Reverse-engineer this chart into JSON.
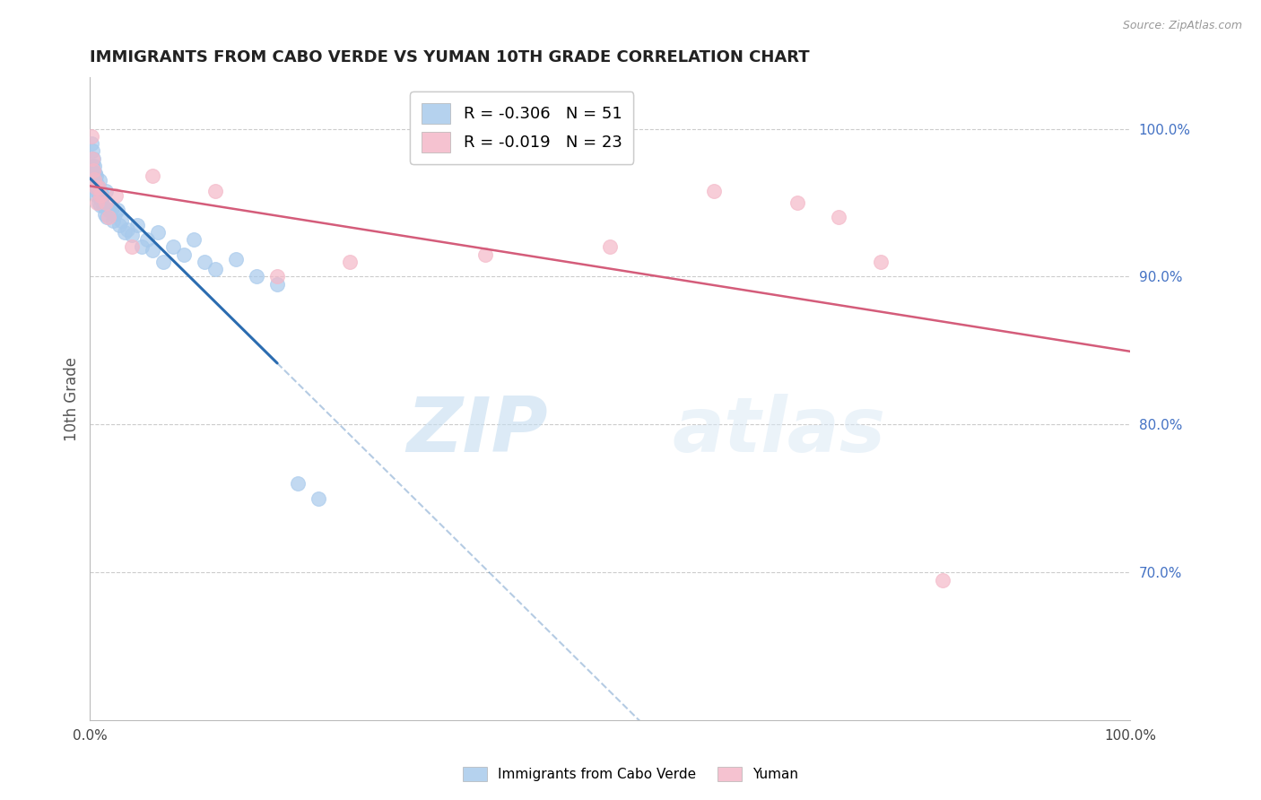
{
  "title": "IMMIGRANTS FROM CABO VERDE VS YUMAN 10TH GRADE CORRELATION CHART",
  "source": "Source: ZipAtlas.com",
  "ylabel": "10th Grade",
  "right_yticks": [
    "70.0%",
    "80.0%",
    "90.0%",
    "100.0%"
  ],
  "right_ytick_vals": [
    0.7,
    0.8,
    0.9,
    1.0
  ],
  "legend_blue_r": "R = -0.306",
  "legend_blue_n": "N = 51",
  "legend_pink_r": "R = -0.019",
  "legend_pink_n": "N = 23",
  "blue_color": "#a8caec",
  "pink_color": "#f4b8c8",
  "blue_line_color": "#2b6cb0",
  "pink_line_color": "#d45c7a",
  "watermark_zip": "ZIP",
  "watermark_atlas": "atlas",
  "blue_points_x": [
    0.001,
    0.002,
    0.002,
    0.003,
    0.003,
    0.004,
    0.004,
    0.005,
    0.005,
    0.006,
    0.006,
    0.007,
    0.007,
    0.008,
    0.008,
    0.009,
    0.009,
    0.01,
    0.01,
    0.011,
    0.012,
    0.013,
    0.014,
    0.015,
    0.016,
    0.018,
    0.02,
    0.022,
    0.024,
    0.026,
    0.028,
    0.03,
    0.033,
    0.036,
    0.04,
    0.045,
    0.05,
    0.055,
    0.06,
    0.065,
    0.07,
    0.08,
    0.09,
    0.1,
    0.11,
    0.12,
    0.14,
    0.16,
    0.18,
    0.2,
    0.22
  ],
  "blue_points_y": [
    0.99,
    0.985,
    0.975,
    0.98,
    0.97,
    0.975,
    0.965,
    0.97,
    0.96,
    0.968,
    0.958,
    0.963,
    0.955,
    0.96,
    0.95,
    0.965,
    0.955,
    0.958,
    0.948,
    0.952,
    0.955,
    0.948,
    0.942,
    0.958,
    0.94,
    0.945,
    0.945,
    0.938,
    0.942,
    0.945,
    0.935,
    0.938,
    0.93,
    0.932,
    0.928,
    0.935,
    0.92,
    0.925,
    0.918,
    0.93,
    0.91,
    0.92,
    0.915,
    0.925,
    0.91,
    0.905,
    0.912,
    0.9,
    0.895,
    0.76,
    0.75
  ],
  "pink_points_x": [
    0.001,
    0.002,
    0.003,
    0.004,
    0.006,
    0.007,
    0.008,
    0.01,
    0.015,
    0.018,
    0.025,
    0.04,
    0.06,
    0.12,
    0.18,
    0.25,
    0.38,
    0.5,
    0.6,
    0.68,
    0.72,
    0.76,
    0.82
  ],
  "pink_points_y": [
    0.995,
    0.98,
    0.972,
    0.966,
    0.96,
    0.95,
    0.96,
    0.955,
    0.95,
    0.94,
    0.955,
    0.92,
    0.968,
    0.958,
    0.9,
    0.91,
    0.915,
    0.92,
    0.958,
    0.95,
    0.94,
    0.91,
    0.695
  ],
  "xlim": [
    0.0,
    1.0
  ],
  "ylim": [
    0.6,
    1.035
  ],
  "grid_color": "#cccccc",
  "background_color": "#ffffff",
  "title_fontsize": 13,
  "axis_label_color": "#555555",
  "right_axis_color": "#4472c4",
  "blue_trend_x_start": 0.0,
  "blue_trend_x_end_solid": 0.18,
  "pink_trend_x_start": 0.0,
  "pink_trend_x_end": 1.0
}
